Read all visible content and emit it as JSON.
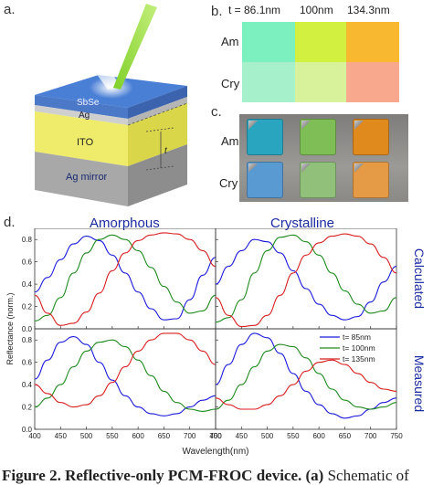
{
  "panel_labels": {
    "a": "a.",
    "b": "b.",
    "c": "c.",
    "d": "d."
  },
  "device": {
    "layers": [
      "SbSe",
      "Ag",
      "ITO",
      "Ag mirror"
    ],
    "thickness_label": "t"
  },
  "swatches": {
    "headers": [
      "t = 86.1nm",
      "100nm",
      "134.3nm"
    ],
    "rows": [
      "Am",
      "Cry"
    ],
    "colors": {
      "Am": [
        "#7df0c0",
        "#d2f040",
        "#f8b830"
      ],
      "Cry": [
        "#a6f0cc",
        "#d8f29c",
        "#f8a88c"
      ]
    }
  },
  "photo": {
    "rows": [
      "Am",
      "Cry"
    ],
    "colors": {
      "Am": [
        "#2aa5c0",
        "#7fbd56",
        "#e08a1e"
      ],
      "Cry": [
        "#5a9ad2",
        "#90c07a",
        "#e59a45"
      ]
    }
  },
  "plot": {
    "col_titles": [
      "Amorphous",
      "Crystalline"
    ],
    "row_titles": [
      "Calculated",
      "Measured"
    ],
    "ylabel": "Reflectance (norm.)",
    "xlabel": "Wavelength(nm)"
  },
  "chart_data": {
    "type": "line",
    "xlim": [
      400,
      750
    ],
    "ylim": [
      0,
      0.9
    ],
    "xticks": [
      400,
      450,
      500,
      550,
      600,
      650,
      700,
      750
    ],
    "yticks": [
      0,
      0.2,
      0.4,
      0.6,
      0.8
    ],
    "legend_position": "right",
    "series_colors": {
      "t= 85nm": "#1a1adb",
      "t= 100nm": "#1e8a1e",
      "t= 135nm": "#d81e1e"
    },
    "panels": [
      {
        "col": "Amorphous",
        "row": "Calculated",
        "series": [
          {
            "name": "t= 85nm",
            "x": [
              400,
              425,
              450,
              475,
              500,
              525,
              550,
              575,
              600,
              625,
              650,
              675,
              700,
              725,
              750
            ],
            "y": [
              0.33,
              0.46,
              0.62,
              0.76,
              0.83,
              0.79,
              0.66,
              0.5,
              0.33,
              0.18,
              0.08,
              0.09,
              0.26,
              0.48,
              0.64
            ]
          },
          {
            "name": "t= 100nm",
            "x": [
              400,
              425,
              450,
              475,
              500,
              525,
              550,
              575,
              600,
              625,
              650,
              675,
              700,
              725,
              750
            ],
            "y": [
              0.07,
              0.12,
              0.28,
              0.5,
              0.68,
              0.8,
              0.84,
              0.8,
              0.7,
              0.55,
              0.38,
              0.24,
              0.14,
              0.16,
              0.3
            ]
          },
          {
            "name": "t= 135nm",
            "x": [
              400,
              425,
              450,
              475,
              500,
              525,
              550,
              575,
              600,
              625,
              650,
              675,
              700,
              725,
              750
            ],
            "y": [
              0.3,
              0.14,
              0.03,
              0.05,
              0.15,
              0.32,
              0.52,
              0.68,
              0.79,
              0.84,
              0.86,
              0.85,
              0.8,
              0.7,
              0.56
            ]
          }
        ]
      },
      {
        "col": "Crystalline",
        "row": "Calculated",
        "series": [
          {
            "name": "t= 85nm",
            "x": [
              400,
              425,
              450,
              475,
              500,
              525,
              550,
              575,
              600,
              625,
              650,
              675,
              700,
              725,
              750
            ],
            "y": [
              0.4,
              0.56,
              0.7,
              0.8,
              0.78,
              0.68,
              0.52,
              0.36,
              0.22,
              0.12,
              0.08,
              0.11,
              0.24,
              0.42,
              0.56
            ]
          },
          {
            "name": "t= 100nm",
            "x": [
              400,
              425,
              450,
              475,
              500,
              525,
              550,
              575,
              600,
              625,
              650,
              675,
              700,
              725,
              750
            ],
            "y": [
              0.06,
              0.1,
              0.26,
              0.5,
              0.7,
              0.82,
              0.84,
              0.78,
              0.66,
              0.5,
              0.34,
              0.22,
              0.14,
              0.16,
              0.28
            ]
          },
          {
            "name": "t= 135nm",
            "x": [
              400,
              425,
              450,
              475,
              500,
              525,
              550,
              575,
              600,
              625,
              650,
              675,
              700,
              725,
              750
            ],
            "y": [
              0.28,
              0.12,
              0.02,
              0.03,
              0.12,
              0.3,
              0.5,
              0.66,
              0.77,
              0.83,
              0.85,
              0.83,
              0.76,
              0.64,
              0.5
            ]
          }
        ]
      },
      {
        "col": "Amorphous",
        "row": "Measured",
        "series": [
          {
            "name": "t= 85nm",
            "x": [
              400,
              425,
              450,
              475,
              500,
              525,
              550,
              575,
              600,
              625,
              650,
              675,
              700,
              725,
              750
            ],
            "y": [
              0.45,
              0.62,
              0.78,
              0.83,
              0.76,
              0.6,
              0.44,
              0.3,
              0.2,
              0.14,
              0.12,
              0.14,
              0.2,
              0.26,
              0.3
            ]
          },
          {
            "name": "t= 100nm",
            "x": [
              400,
              425,
              450,
              475,
              500,
              525,
              550,
              575,
              600,
              625,
              650,
              675,
              700,
              725,
              750
            ],
            "y": [
              0.2,
              0.28,
              0.4,
              0.56,
              0.7,
              0.78,
              0.8,
              0.74,
              0.62,
              0.48,
              0.34,
              0.24,
              0.18,
              0.16,
              0.18
            ]
          },
          {
            "name": "t= 135nm",
            "x": [
              400,
              425,
              450,
              475,
              500,
              525,
              550,
              575,
              600,
              625,
              650,
              675,
              700,
              725,
              750
            ],
            "y": [
              0.4,
              0.32,
              0.24,
              0.2,
              0.22,
              0.3,
              0.42,
              0.56,
              0.7,
              0.8,
              0.86,
              0.86,
              0.8,
              0.7,
              0.58
            ]
          }
        ]
      },
      {
        "col": "Crystalline",
        "row": "Measured",
        "series": [
          {
            "name": "t= 85nm",
            "x": [
              400,
              425,
              450,
              475,
              500,
              525,
              550,
              575,
              600,
              625,
              650,
              675,
              700,
              725,
              750
            ],
            "y": [
              0.4,
              0.58,
              0.76,
              0.86,
              0.82,
              0.68,
              0.5,
              0.34,
              0.22,
              0.14,
              0.1,
              0.12,
              0.18,
              0.24,
              0.28
            ]
          },
          {
            "name": "t= 100nm",
            "x": [
              400,
              425,
              450,
              475,
              500,
              525,
              550,
              575,
              600,
              625,
              650,
              675,
              700,
              725,
              750
            ],
            "y": [
              0.18,
              0.26,
              0.4,
              0.56,
              0.7,
              0.76,
              0.74,
              0.64,
              0.5,
              0.36,
              0.26,
              0.2,
              0.18,
              0.2,
              0.24
            ]
          },
          {
            "name": "t= 135nm",
            "x": [
              400,
              425,
              450,
              475,
              500,
              525,
              550,
              575,
              600,
              625,
              650,
              675,
              700,
              725,
              750
            ],
            "y": [
              0.28,
              0.22,
              0.18,
              0.18,
              0.22,
              0.3,
              0.4,
              0.52,
              0.6,
              0.62,
              0.58,
              0.5,
              0.42,
              0.36,
              0.34
            ]
          }
        ]
      }
    ]
  },
  "caption": {
    "bold": "Figure 2. Reflective-only PCM-FROC device. (a)",
    "rest": " Schematic of"
  }
}
